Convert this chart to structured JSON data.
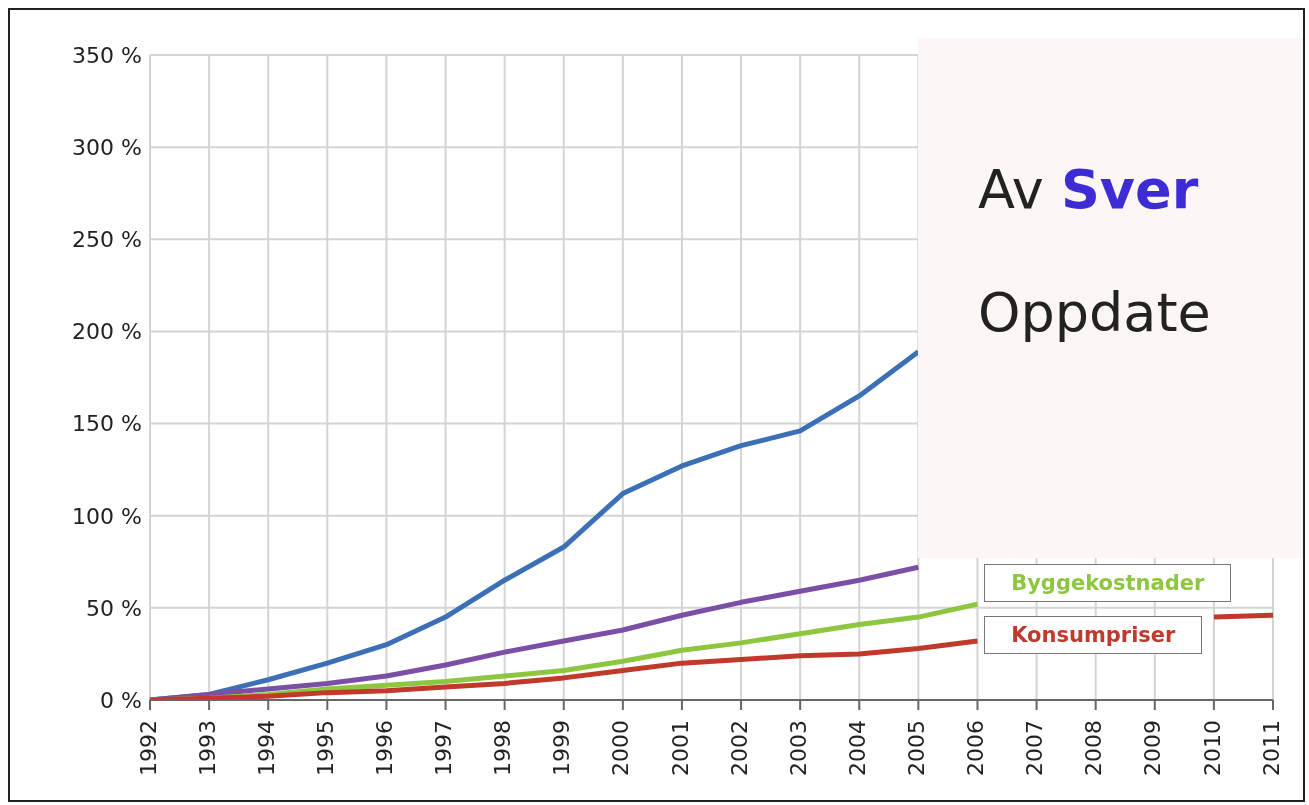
{
  "chart_data": {
    "type": "line",
    "categories": [
      "1992",
      "1993",
      "1994",
      "1995",
      "1996",
      "1997",
      "1998",
      "1999",
      "2000",
      "2001",
      "2002",
      "2003",
      "2004",
      "2005",
      "2006",
      "2007",
      "2008",
      "2009",
      "2010",
      "2011"
    ],
    "series": [
      {
        "color": "#3b6fb6",
        "values": [
          0,
          3,
          11,
          20,
          30,
          45,
          65,
          83,
          112,
          127,
          138,
          146,
          165,
          189,
          null,
          null,
          null,
          null,
          null,
          null
        ]
      },
      {
        "color": "#7b4fa6",
        "values": [
          0,
          3,
          6,
          9,
          13,
          19,
          26,
          32,
          38,
          46,
          53,
          59,
          65,
          72,
          null,
          null,
          null,
          null,
          null,
          null
        ]
      },
      {
        "name": "Byggekostnader",
        "color": "#8dc63f",
        "values": [
          0,
          1,
          3,
          6,
          8,
          10,
          13,
          16,
          21,
          27,
          31,
          36,
          41,
          45,
          52,
          null,
          null,
          null,
          null,
          null
        ]
      },
      {
        "name": "Konsumpriser",
        "color": "#c0392b",
        "values": [
          0,
          1,
          2,
          4,
          5,
          7,
          9,
          12,
          16,
          20,
          22,
          24,
          25,
          28,
          32,
          null,
          null,
          null,
          45,
          46
        ]
      }
    ],
    "ylim": [
      0,
      350
    ],
    "yticks": [
      {
        "value": 0,
        "label": "0 %"
      },
      {
        "value": 50,
        "label": "50 %"
      },
      {
        "value": 100,
        "label": "100 %"
      },
      {
        "value": 150,
        "label": "150 %"
      },
      {
        "value": 200,
        "label": "200 %"
      },
      {
        "value": 250,
        "label": "250 %"
      },
      {
        "value": 300,
        "label": "300 %"
      },
      {
        "value": 350,
        "label": "350 %"
      }
    ],
    "grid": true,
    "marker": "none",
    "line_style": "solid",
    "annotations": [
      "Av Sver",
      "Oppdate"
    ]
  }
}
